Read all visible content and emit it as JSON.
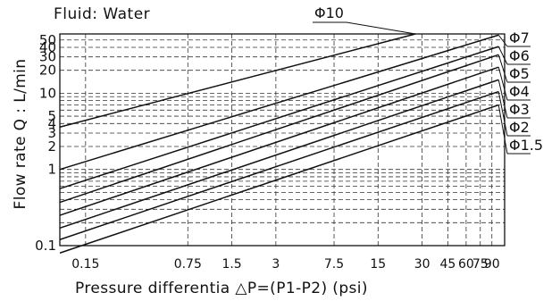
{
  "chart_data": {
    "type": "line",
    "title": "Fluid: Water",
    "xlabel": "Pressure differentia  △P=(P1-P2)   (psi)",
    "ylabel": "Flow rate Q : L/min",
    "x_scale": "log",
    "y_scale": "log",
    "xlim": [
      0.1,
      110
    ],
    "ylim": [
      0.1,
      60
    ],
    "x_ticks": [
      0.15,
      0.75,
      1.5,
      3,
      7.5,
      15,
      30,
      45,
      60,
      75,
      90
    ],
    "x_tick_labels": [
      "0.15",
      "0.75",
      "1.5",
      "3",
      "7.5",
      "15",
      "30",
      "45",
      "60",
      "75",
      "90"
    ],
    "y_ticks": [
      0.1,
      1,
      2,
      3,
      4,
      5,
      10,
      20,
      30,
      40,
      50
    ],
    "y_tick_labels": [
      "0.1",
      "1",
      "2",
      "3",
      "4",
      "5",
      "10",
      "20",
      "30",
      "40",
      "50"
    ],
    "grid": true,
    "series": [
      {
        "name": "Φ10",
        "x": [
          0.1,
          27
        ],
        "y": [
          3.6,
          60
        ]
      },
      {
        "name": "Φ7",
        "x": [
          0.1,
          100
        ],
        "y": [
          1.0,
          58
        ]
      },
      {
        "name": "Φ6",
        "x": [
          0.1,
          100
        ],
        "y": [
          0.56,
          41
        ]
      },
      {
        "name": "Φ5",
        "x": [
          0.1,
          100
        ],
        "y": [
          0.37,
          32
        ]
      },
      {
        "name": "Φ4",
        "x": [
          0.1,
          100
        ],
        "y": [
          0.25,
          22
        ]
      },
      {
        "name": "Φ3",
        "x": [
          0.1,
          100
        ],
        "y": [
          0.17,
          15
        ]
      },
      {
        "name": "Φ2",
        "x": [
          0.1,
          100
        ],
        "y": [
          0.12,
          10.5
        ]
      },
      {
        "name": "Φ1.5",
        "x": [
          0.1,
          100
        ],
        "y": [
          0.08,
          7.0
        ]
      }
    ]
  }
}
